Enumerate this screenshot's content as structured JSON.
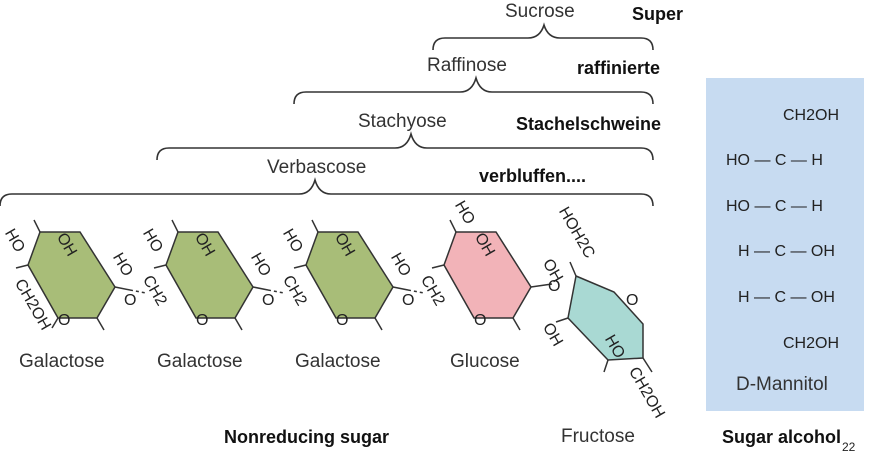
{
  "sugars": {
    "sucrose": "Sucrose",
    "raffinose": "Raffinose",
    "stachyose": "Stachyose",
    "verbascose": "Verbascose"
  },
  "mnemonic": [
    "Super",
    "raffinierte",
    "Stachelschweine",
    "verbluffen...."
  ],
  "units": {
    "galactose": "Galactose",
    "glucose": "Glucose",
    "fructose": "Fructose"
  },
  "chem_labels": {
    "ho": "HO",
    "oh": "OH",
    "ring_o": "O",
    "ch2": "CH2",
    "ch2oh": "CH2OH",
    "hoh2c": "HOH2C"
  },
  "mannitol": {
    "rows": [
      "CH2OH",
      "HO — C — H",
      "HO — C — H",
      "H — C — OH",
      "H — C — OH",
      "CH2OH"
    ],
    "name": "D-Mannitol"
  },
  "footer": {
    "nonreducing": "Nonreducing sugar",
    "sugar_alcohol": "Sugar alcohol",
    "page_number": "22"
  },
  "colors": {
    "galactose": "#a8bd78",
    "glucose": "#f2b3b8",
    "fructose": "#a9d9d3",
    "mannitol_panel": "#c7dbf1"
  }
}
